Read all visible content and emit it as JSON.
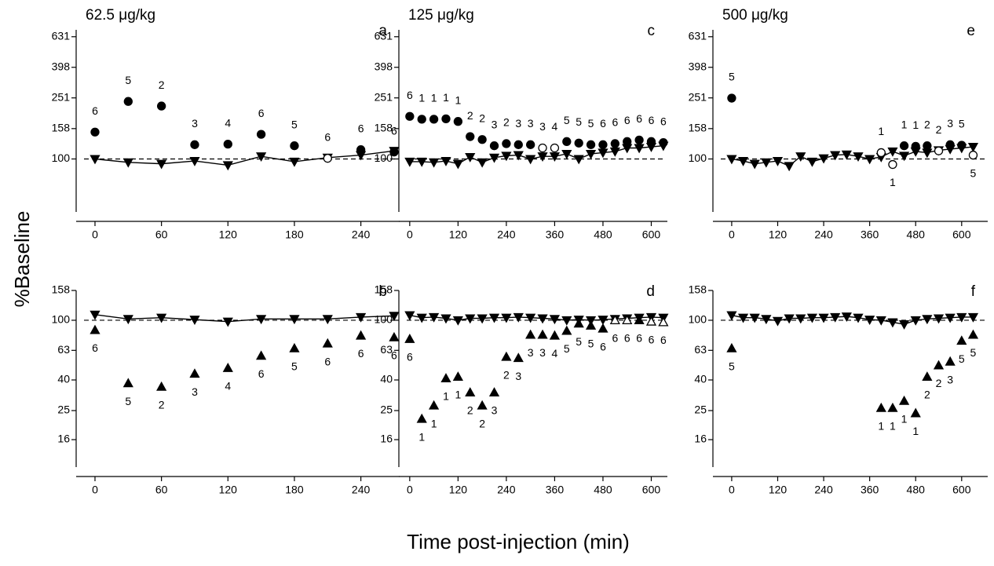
{
  "figure": {
    "y_label": "%Baseline",
    "x_label": "Time post-injection (min)"
  },
  "chart_data": [
    {
      "type": "scatter",
      "title": "62.5 μg/kg",
      "panel": "a",
      "log_y": true,
      "reference_line": 100,
      "xlim": [
        -17,
        275
      ],
      "xticks": [
        0,
        60,
        120,
        180,
        240
      ],
      "ylim": [
        45,
        700
      ],
      "yticks": [
        100,
        158,
        251,
        398,
        631
      ],
      "series": [
        {
          "marker": "triangle-down",
          "filled": true,
          "line": true,
          "x": [
            0,
            30,
            60,
            90,
            120,
            150,
            180,
            210,
            240,
            270
          ],
          "values": [
            100,
            95,
            93,
            97,
            91,
            104,
            96,
            102,
            106,
            113
          ]
        },
        {
          "marker": "circle",
          "filled": true,
          "line": false,
          "x": [
            0,
            30,
            60,
            90,
            120,
            150,
            180,
            240,
            270
          ],
          "values": [
            150,
            238,
            222,
            124,
            125,
            145,
            122,
            115,
            111
          ],
          "labels": [
            "6",
            "5",
            "2",
            "3",
            "4",
            "6",
            "5",
            "6",
            "6"
          ],
          "label_side": "above"
        },
        {
          "marker": "circle",
          "filled": false,
          "line": false,
          "x": [
            210
          ],
          "values": [
            101
          ],
          "labels": [
            "6"
          ],
          "label_side": "above"
        }
      ]
    },
    {
      "type": "scatter",
      "panel": "b",
      "log_y": true,
      "reference_line": 100,
      "xlim": [
        -17,
        275
      ],
      "xticks": [
        0,
        60,
        120,
        180,
        240
      ],
      "ylim": [
        10.5,
        158
      ],
      "yticks": [
        16,
        25,
        40,
        63,
        100,
        158
      ],
      "series": [
        {
          "marker": "triangle-down",
          "filled": true,
          "line": true,
          "x": [
            0,
            30,
            60,
            90,
            120,
            150,
            180,
            210,
            240,
            270
          ],
          "values": [
            109,
            102,
            104,
            101,
            98,
            102,
            102,
            102,
            105,
            107
          ]
        },
        {
          "marker": "triangle-up",
          "filled": true,
          "line": false,
          "x": [
            0,
            30,
            60,
            90,
            120,
            150,
            180,
            210,
            240,
            270
          ],
          "values": [
            86,
            38,
            36,
            44,
            48,
            58,
            65,
            70,
            79,
            77
          ],
          "labels": [
            "6",
            "5",
            "2",
            "3",
            "4",
            "6",
            "5",
            "6",
            "6",
            "6"
          ],
          "label_side": "below"
        }
      ]
    },
    {
      "type": "scatter",
      "title": "125 μg/kg",
      "panel": "c",
      "log_y": true,
      "reference_line": 100,
      "xlim": [
        -27,
        640
      ],
      "xticks": [
        0,
        120,
        240,
        360,
        480,
        600
      ],
      "ylim": [
        45,
        700
      ],
      "yticks": [
        100,
        158,
        251,
        398,
        631
      ],
      "series": [
        {
          "marker": "triangle-down",
          "filled": true,
          "line": true,
          "x": [
            0,
            30,
            60,
            90,
            120,
            150,
            180,
            210,
            240,
            270,
            300,
            330,
            360,
            390,
            420,
            450,
            480,
            510,
            540,
            570,
            600,
            630
          ],
          "values": [
            96,
            96,
            95,
            97,
            93,
            103,
            95,
            102,
            105,
            106,
            100,
            104,
            104,
            108,
            100,
            108,
            110,
            112,
            118,
            118,
            120,
            122
          ]
        },
        {
          "marker": "circle",
          "filled": true,
          "line": false,
          "x": [
            0,
            30,
            60,
            90,
            120,
            150,
            180,
            210,
            240,
            270,
            300,
            390,
            420,
            450,
            480,
            510,
            540,
            570,
            600,
            630
          ],
          "values": [
            190,
            182,
            182,
            183,
            176,
            140,
            134,
            122,
            126,
            124,
            124,
            130,
            127,
            124,
            124,
            126,
            130,
            133,
            130,
            128
          ],
          "labels": [
            "6",
            "1",
            "1",
            "1",
            "1",
            "2",
            "2",
            "3",
            "2",
            "3",
            "3",
            "5",
            "5",
            "5",
            "6",
            "6",
            "6",
            "6",
            "6",
            "6"
          ],
          "label_side": "above"
        },
        {
          "marker": "circle",
          "filled": false,
          "line": false,
          "x": [
            330,
            360
          ],
          "values": [
            118,
            118
          ],
          "labels": [
            "3",
            "4"
          ],
          "label_side": "above"
        }
      ]
    },
    {
      "type": "scatter",
      "panel": "d",
      "log_y": true,
      "reference_line": 100,
      "xlim": [
        -27,
        640
      ],
      "xticks": [
        0,
        120,
        240,
        360,
        480,
        600
      ],
      "ylim": [
        10.5,
        158
      ],
      "yticks": [
        16,
        25,
        40,
        63,
        100,
        158
      ],
      "series": [
        {
          "marker": "triangle-down",
          "filled": true,
          "line": true,
          "x": [
            0,
            30,
            60,
            90,
            120,
            150,
            180,
            210,
            240,
            270,
            300,
            330,
            360,
            390,
            420,
            450,
            480,
            510,
            540,
            570,
            600,
            630
          ],
          "values": [
            108,
            104,
            105,
            103,
            100,
            103,
            103,
            104,
            104,
            105,
            104,
            103,
            102,
            100,
            101,
            100,
            101,
            102,
            103,
            104,
            105,
            104
          ]
        },
        {
          "marker": "triangle-up",
          "filled": true,
          "line": false,
          "x": [
            0,
            30,
            60,
            90,
            120,
            150,
            180,
            210,
            240,
            270,
            300,
            330,
            360,
            390,
            420,
            450,
            480,
            570
          ],
          "values": [
            75,
            22,
            27,
            41,
            42,
            33,
            27,
            33,
            57,
            56,
            80,
            80,
            79,
            85,
            95,
            92,
            88,
            100
          ],
          "labels": [
            "6",
            "1",
            "1",
            "1",
            "1",
            "2",
            "2",
            "3",
            "2",
            "3",
            "3",
            "3",
            "4",
            "5",
            "5",
            "5",
            "6",
            "6"
          ],
          "label_side": "below"
        },
        {
          "marker": "triangle-up",
          "filled": false,
          "line": false,
          "x": [
            510,
            540,
            600,
            630
          ],
          "values": [
            100,
            100,
            98,
            97
          ],
          "labels": [
            "6",
            "6",
            "6",
            "6"
          ],
          "label_side": "below"
        }
      ]
    },
    {
      "type": "scatter",
      "title": "500 μg/kg",
      "panel": "e",
      "log_y": true,
      "reference_line": 100,
      "xlim": [
        -49,
        668
      ],
      "xticks": [
        0,
        120,
        240,
        360,
        480,
        600
      ],
      "ylim": [
        45,
        700
      ],
      "yticks": [
        100,
        158,
        251,
        398,
        631
      ],
      "series": [
        {
          "marker": "triangle-down",
          "filled": true,
          "line": true,
          "x": [
            0,
            30,
            60,
            90,
            120,
            150,
            180,
            210,
            240,
            270,
            300,
            330,
            360,
            390,
            420,
            450,
            480,
            510,
            540,
            570,
            600,
            630
          ],
          "values": [
            100,
            97,
            93,
            95,
            97,
            90,
            104,
            96,
            101,
            106,
            107,
            104,
            100,
            103,
            112,
            105,
            112,
            110,
            114,
            116,
            118,
            120
          ]
        },
        {
          "marker": "circle",
          "filled": true,
          "line": false,
          "x": [
            0,
            450,
            480,
            510,
            570,
            600
          ],
          "values": [
            250,
            122,
            121,
            122,
            124,
            123
          ],
          "labels": [
            "5",
            "1",
            "1",
            "2",
            "3",
            "5"
          ],
          "label_side": "above"
        },
        {
          "marker": "circle",
          "filled": false,
          "line": false,
          "x": [
            390,
            420,
            540,
            630
          ],
          "values": [
            110,
            92,
            113,
            106
          ],
          "labels": [
            "1",
            "1",
            "2",
            "5"
          ],
          "label_side": [
            "above",
            "below",
            "above",
            "below"
          ]
        }
      ]
    },
    {
      "type": "scatter",
      "panel": "f",
      "log_y": true,
      "reference_line": 100,
      "xlim": [
        -49,
        668
      ],
      "xticks": [
        0,
        120,
        240,
        360,
        480,
        600
      ],
      "ylim": [
        10.5,
        158
      ],
      "yticks": [
        16,
        25,
        40,
        63,
        100,
        158
      ],
      "series": [
        {
          "marker": "triangle-down",
          "filled": true,
          "line": true,
          "x": [
            0,
            30,
            60,
            90,
            120,
            150,
            180,
            210,
            240,
            270,
            300,
            330,
            360,
            390,
            420,
            450,
            480,
            510,
            540,
            570,
            600,
            630
          ],
          "values": [
            108,
            104,
            104,
            102,
            99,
            103,
            103,
            104,
            104,
            105,
            106,
            104,
            101,
            100,
            97,
            94,
            100,
            102,
            103,
            104,
            105,
            105
          ]
        },
        {
          "marker": "triangle-up",
          "filled": true,
          "line": false,
          "x": [
            0,
            390,
            420,
            450,
            480,
            510,
            540,
            570,
            600,
            630
          ],
          "values": [
            65,
            26,
            26,
            29,
            24,
            42,
            50,
            53,
            73,
            80
          ],
          "labels": [
            "5",
            "1",
            "1",
            "1",
            "1",
            "2",
            "2",
            "3",
            "5",
            "5"
          ],
          "label_side": "below"
        }
      ]
    }
  ]
}
